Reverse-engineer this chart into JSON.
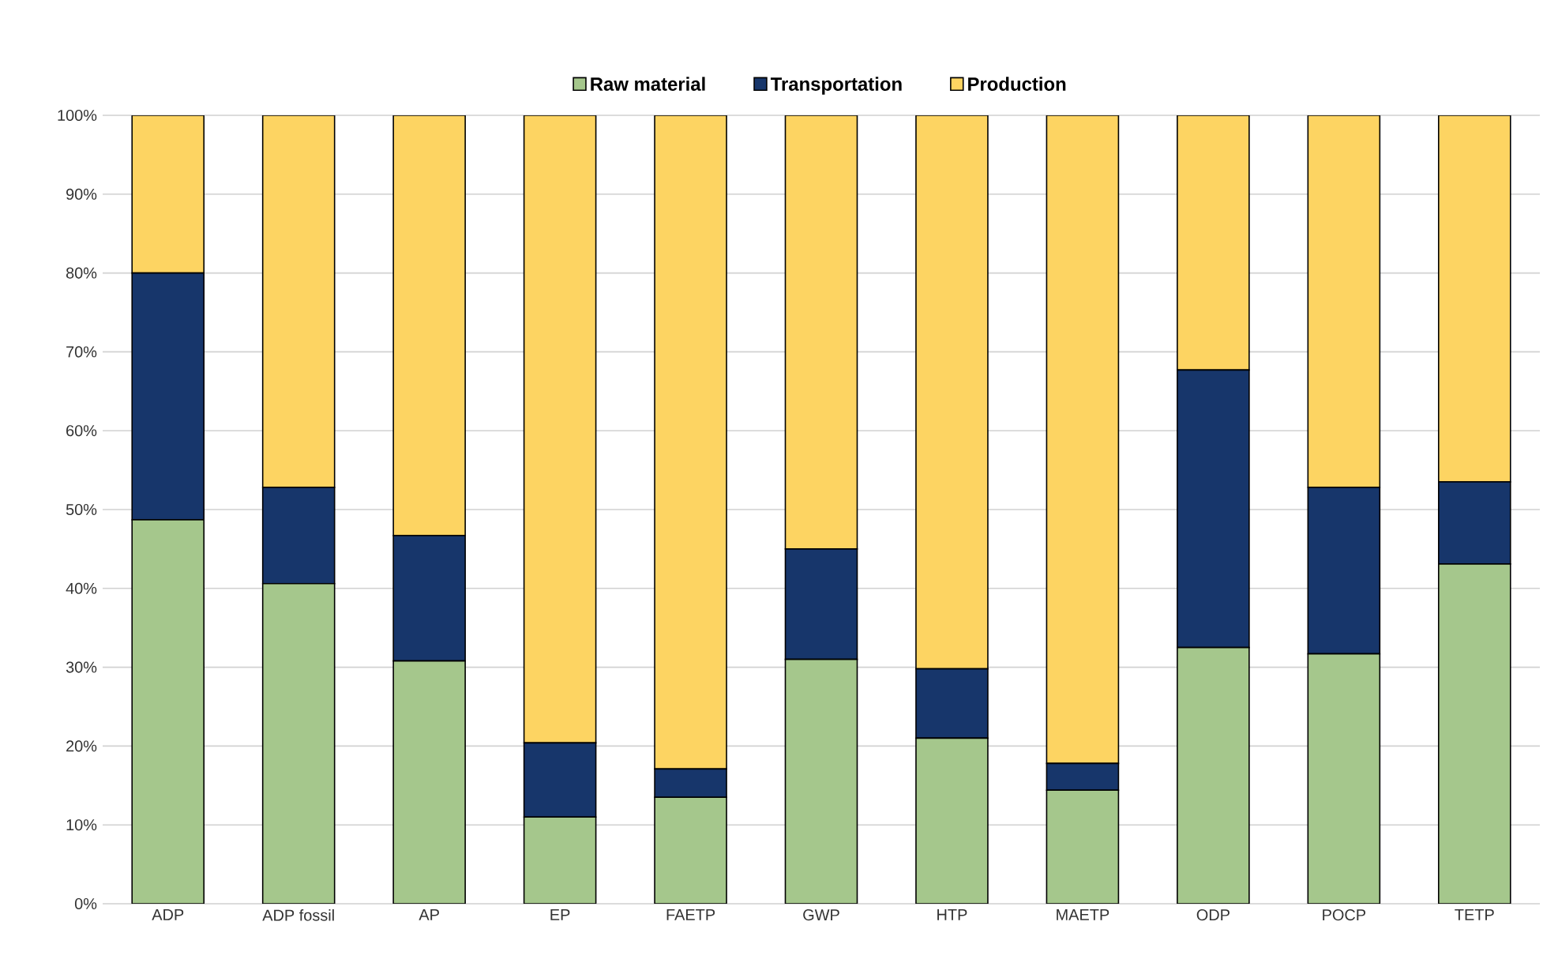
{
  "chart_data": {
    "type": "bar",
    "stacked": true,
    "categories": [
      "ADP",
      "ADP fossil",
      "AP",
      "EP",
      "FAETP",
      "GWP",
      "HTP",
      "MAETP",
      "ODP",
      "POCP",
      "TETP"
    ],
    "series": [
      {
        "name": "Raw material",
        "color": "#a5c78c",
        "values": [
          48.7,
          40.6,
          30.8,
          11.0,
          13.5,
          31.0,
          21.0,
          14.4,
          32.5,
          31.7,
          43.1
        ]
      },
      {
        "name": "Transportation",
        "color": "#17366b",
        "values": [
          31.3,
          12.2,
          15.9,
          9.4,
          3.6,
          14.0,
          8.8,
          3.4,
          35.2,
          21.1,
          10.4
        ]
      },
      {
        "name": "Production",
        "color": "#fdd462",
        "values": [
          20.0,
          47.2,
          53.3,
          79.6,
          82.9,
          55.0,
          70.2,
          82.2,
          32.3,
          47.2,
          46.5
        ]
      }
    ],
    "ylim": [
      0,
      100
    ],
    "yticks": [
      {
        "value": 0,
        "label": "0%"
      },
      {
        "value": 10,
        "label": "10%"
      },
      {
        "value": 20,
        "label": "20%"
      },
      {
        "value": 30,
        "label": "30%"
      },
      {
        "value": 40,
        "label": "40%"
      },
      {
        "value": 50,
        "label": "50%"
      },
      {
        "value": 60,
        "label": "60%"
      },
      {
        "value": 70,
        "label": "70%"
      },
      {
        "value": 80,
        "label": "80%"
      },
      {
        "value": 90,
        "label": "90%"
      },
      {
        "value": 100,
        "label": "100%"
      }
    ],
    "grid": "y",
    "legend": "top"
  }
}
